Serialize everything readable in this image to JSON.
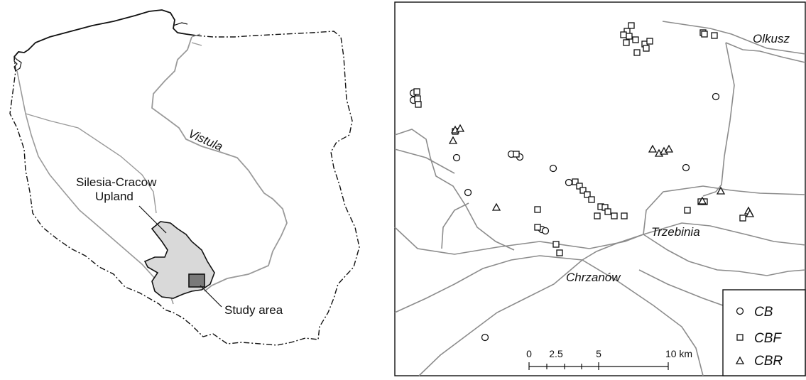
{
  "left_map": {
    "river_label": "Vistula",
    "region_label_line1": "Silesia-Cracow",
    "region_label_line2": "Upland",
    "study_area_label": "Study area"
  },
  "right_map": {
    "towns": {
      "olkusz": "Olkusz",
      "trzebinia": "Trzebinia",
      "chrzanow": "Chrzanów"
    },
    "legend": {
      "items": [
        {
          "symbol": "circle",
          "label": "CB"
        },
        {
          "symbol": "square",
          "label": "CBF"
        },
        {
          "symbol": "triangle",
          "label": "CBR"
        }
      ]
    },
    "scale_bar": {
      "ticks": [
        "0",
        "2.5",
        "5",
        "10 km"
      ]
    }
  },
  "colors": {
    "border": "#111111",
    "river": "#9a9a9a",
    "road": "#8c8c8c",
    "upland_fill": "#d9d9d9",
    "study_fill": "#7a7a7a"
  }
}
